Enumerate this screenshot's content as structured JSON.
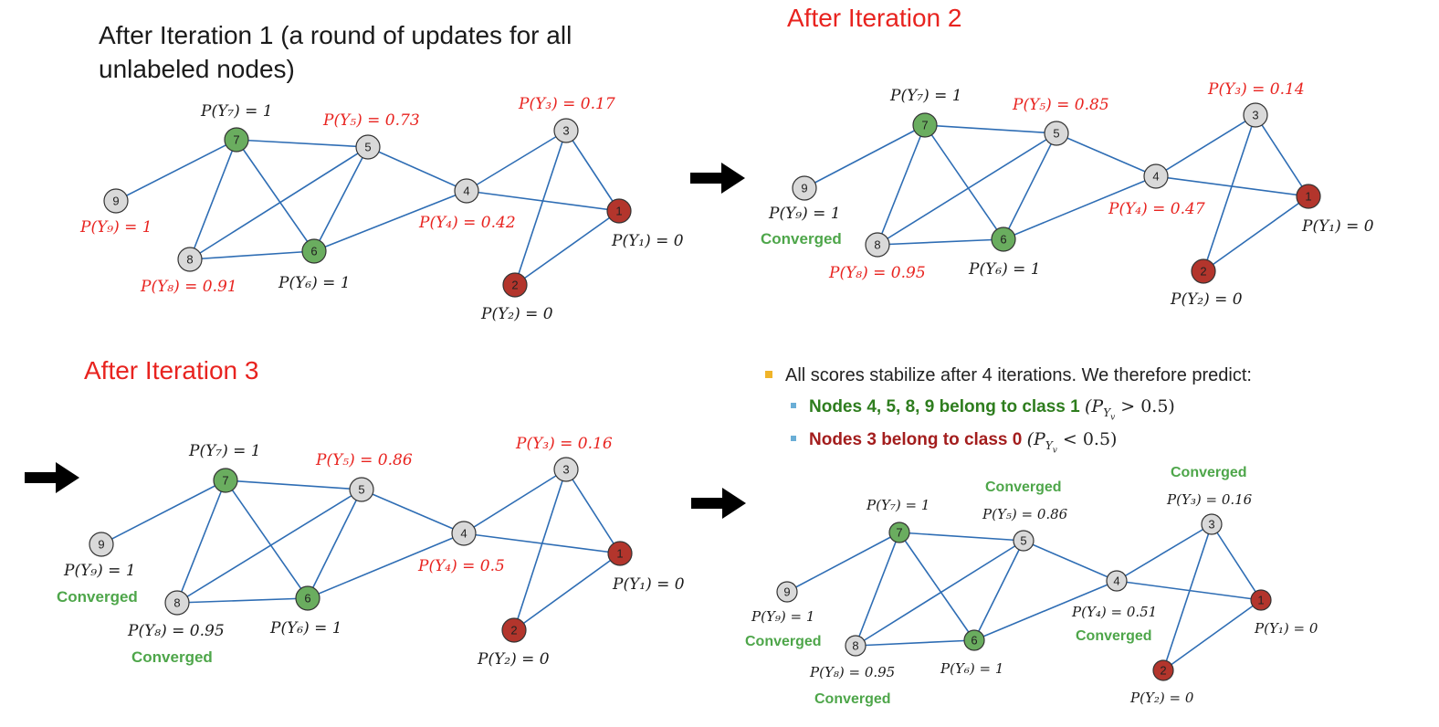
{
  "titles": {
    "iter1_line1": "After Iteration 1 (a round of updates for all",
    "iter1_line2": "unlabeled nodes)",
    "iter2": "After Iteration 2",
    "iter3": "After Iteration 3"
  },
  "colors": {
    "green_node": "#6aad5f",
    "red_node": "#b3352c",
    "gray_node": "#d9d9d9",
    "edge": "#2e6db4",
    "red_text": "#e8231f",
    "converged_text": "#4ea64a",
    "class1_text": "#2e7d1e",
    "class0_text": "#a31d1d"
  },
  "node_names": [
    "1",
    "2",
    "3",
    "4",
    "5",
    "6",
    "7",
    "8",
    "9"
  ],
  "panels": {
    "iter1": {
      "labels": {
        "p7": "P(Y₇) = 1",
        "p5": "P(Y₅) = 0.73",
        "p3": "P(Y₃) = 0.17",
        "p9": "P(Y₉) = 1",
        "p4": "P(Y₄) = 0.42",
        "p1": "P(Y₁) = 0",
        "p8": "P(Y₈) = 0.91",
        "p6": "P(Y₆) = 1",
        "p2": "P(Y₂) = 0"
      }
    },
    "iter2": {
      "labels": {
        "p7": "P(Y₇) = 1",
        "p5": "P(Y₅) = 0.85",
        "p3": "P(Y₃) = 0.14",
        "p9": "P(Y₉) = 1",
        "p4": "P(Y₄) = 0.47",
        "p1": "P(Y₁) = 0",
        "p8": "P(Y₈) = 0.95",
        "p6": "P(Y₆) = 1",
        "p2": "P(Y₂) = 0"
      },
      "converged": "Converged"
    },
    "iter3": {
      "labels": {
        "p7": "P(Y₇) = 1",
        "p5": "P(Y₅) = 0.86",
        "p3": "P(Y₃) = 0.16",
        "p9": "P(Y₉) = 1",
        "p4": "P(Y₄) = 0.5",
        "p1": "P(Y₁) = 0",
        "p8": "P(Y₈) = 0.95",
        "p6": "P(Y₆) = 1",
        "p2": "P(Y₂) = 0"
      },
      "converged": "Converged"
    },
    "final": {
      "labels": {
        "p7": "P(Y₇) = 1",
        "p5": "P(Y₅) = 0.86",
        "p3": "P(Y₃) = 0.16",
        "p9": "P(Y₉) = 1",
        "p4": "P(Y₄) = 0.51",
        "p1": "P(Y₁) = 0",
        "p8": "P(Y₈) = 0.95",
        "p6": "P(Y₆) = 1",
        "p2": "P(Y₂) = 0"
      },
      "converged": "Converged"
    }
  },
  "summary": {
    "main": "All scores stabilize after 4 iterations. We therefore predict:",
    "class1_bold": "Nodes 4, 5, 8, 9 belong to class 1",
    "class1_math": "(P",
    "class1_sub": "Y",
    "class1_subsub": "v",
    "class1_cmp": " > 0.5)",
    "class0_bold": "Nodes 3 belong to class 0",
    "class0_math": "(P",
    "class0_sub": "Y",
    "class0_subsub": "v",
    "class0_cmp": " < 0.5)"
  }
}
